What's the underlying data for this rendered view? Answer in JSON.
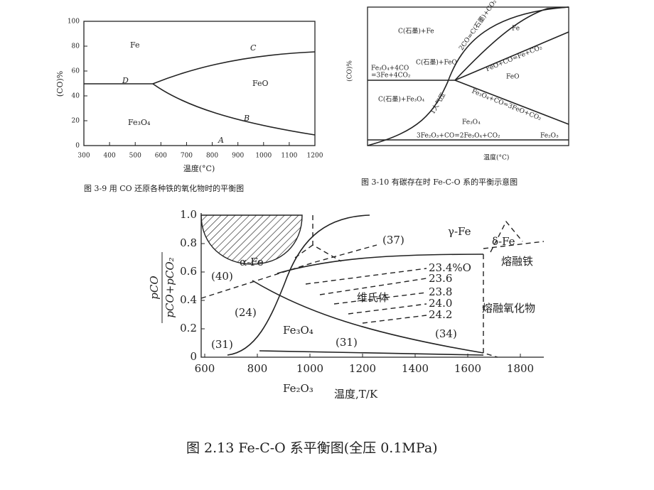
{
  "figures": [
    {
      "caption": "图 3-9  用 CO 还原各种铁的氧化物时的平衡图",
      "y_axis_label": "(CO)%",
      "x_axis_label": "温度(°C)",
      "yticks": [
        "100",
        "80",
        "60",
        "40",
        "20",
        "0"
      ],
      "xticks": [
        "300",
        "400",
        "500",
        "600",
        "700",
        "800",
        "900",
        "1000",
        "1100",
        "1200"
      ],
      "labels": [
        "Fe",
        "FeO",
        "Fe₃O₄",
        "C",
        "D",
        "B",
        "A"
      ]
    },
    {
      "caption": "图 3-10  有碳存在时 Fe-C-O 系的平衡示意图",
      "y_axis_label": "(CO)%",
      "x_axis_label": "温度(°C)",
      "labels": [
        "C(石墨)+Fe",
        "2CO=C(石墨)+CO₂",
        "Fe",
        "C(石墨)+FeO",
        "Fe₃O₄+4CO",
        "=3Fe+4CO₂",
        "FeO+CO=Fe+CO₂",
        "FeO",
        "C(石墨)+Fe₃O₄",
        "1大气压",
        "Fe₃O₄+CO=3FeO+CO₂",
        "Fe₃O₄",
        "3Fe₂O₃+CO=2Fe₃O₄+CO₂",
        "Fe₂O₃"
      ]
    },
    {
      "caption": "图 2.13   Fe-C-O 系平衡图(全压 0.1MPa)",
      "y_axis_numerator": "pCO",
      "y_axis_denominator": "pCO+pCO₂",
      "x_axis_label": "温度,T/K",
      "yticks": [
        "1.0",
        "0.8",
        "0.6",
        "0.4",
        "0.2",
        "0"
      ],
      "xticks": [
        "600",
        "800",
        "1000",
        "1200",
        "1400",
        "1600",
        "1800"
      ],
      "labels": [
        "α-Fe",
        "γ-Fe",
        "δ-Fe",
        "熔融铁",
        "熔融氧化物",
        "维氏体",
        "Fe₃O₄",
        "Fe₂O₃",
        "(40)",
        "(24)",
        "(31)",
        "(37)",
        "(34)",
        "(31)",
        "23.4%O",
        "23.6",
        "23.8",
        "24.0",
        "24.2"
      ]
    }
  ]
}
